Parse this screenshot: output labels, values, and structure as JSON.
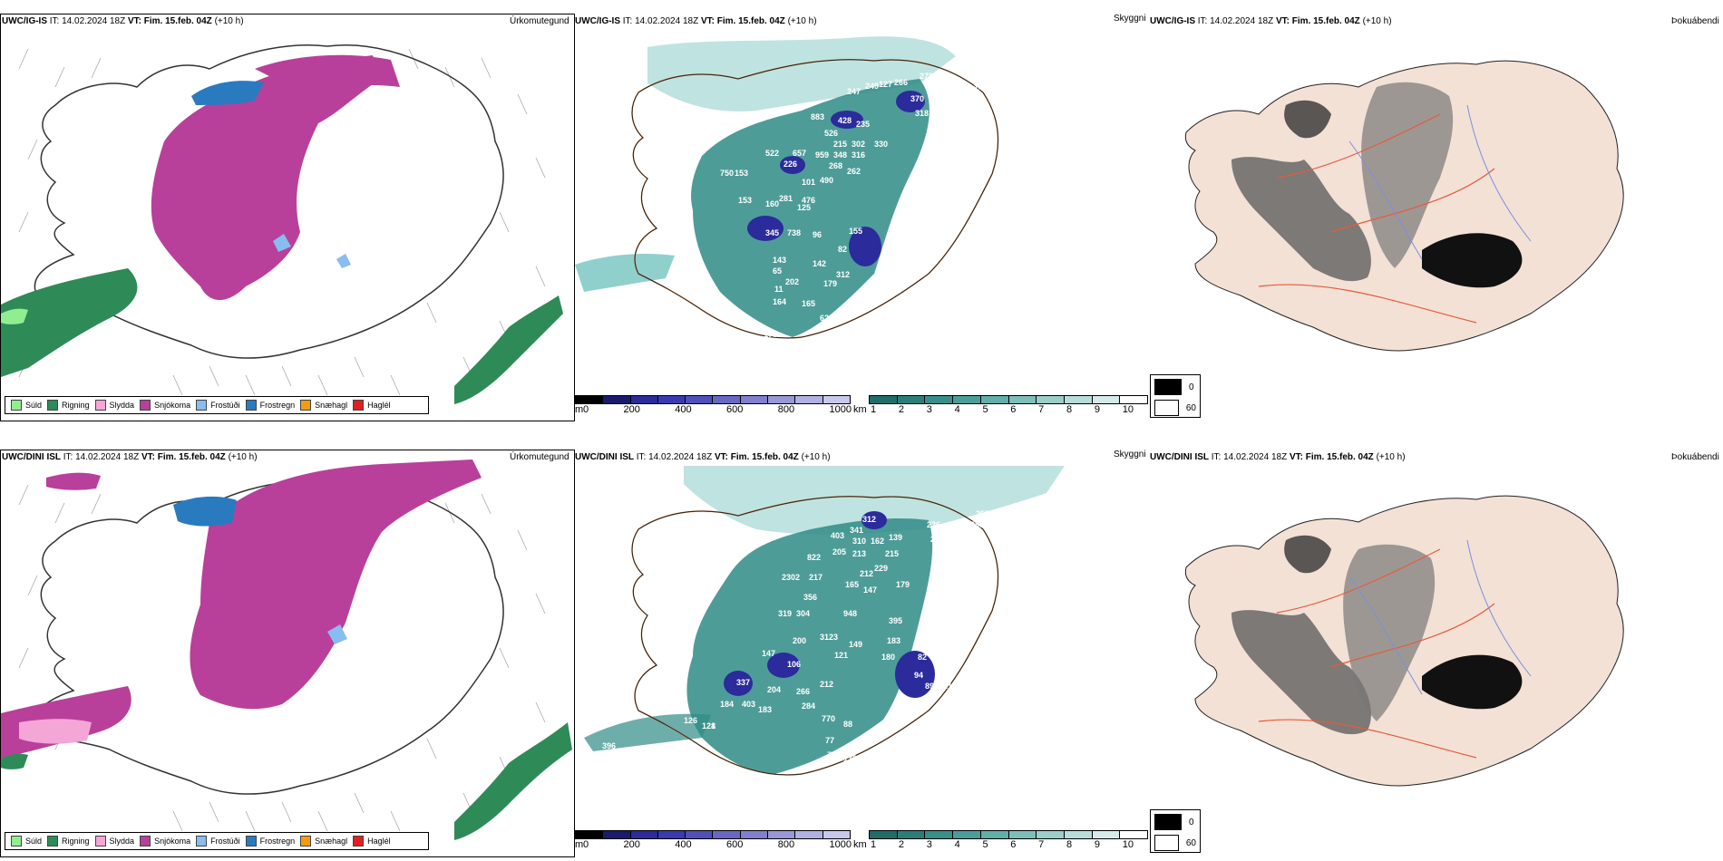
{
  "panels_top": {
    "precip": {
      "model": "UWC/IG-IS",
      "it": "IT: 14.02.2024 18Z",
      "vt_label": "VT:",
      "vt": "Fim. 15.feb. 04Z",
      "lead": "(+10 h)",
      "right_title": "Úrkomutegund"
    },
    "ceiling": {
      "model": "UWC/IG-IS",
      "it": "IT: 14.02.2024 18Z",
      "vt_label": "VT:",
      "vt": "Fim. 15.feb. 04Z",
      "lead": "(+10 h)",
      "right_title": "Skyggni"
    },
    "fog": {
      "model": "UWC/IG-IS",
      "it": "IT: 14.02.2024 18Z",
      "vt_label": "VT:",
      "vt": "Fim. 15.feb. 04Z",
      "lead": "(+10 h)",
      "right_title": "Þokuábendi"
    }
  },
  "panels_bottom": {
    "precip": {
      "model": "UWC/DINI ISL",
      "it": "IT: 14.02.2024 18Z",
      "vt_label": "VT:",
      "vt": "Fim. 15.feb. 04Z",
      "lead": "(+10 h)",
      "right_title": "Úrkomutegund"
    },
    "ceiling": {
      "model": "UWC/DINI ISL",
      "it": "IT: 14.02.2024 18Z",
      "vt_label": "VT:",
      "vt": "Fim. 15.feb. 04Z",
      "lead": "(+10 h)",
      "right_title": "Skyggni"
    },
    "fog": {
      "model": "UWC/DINI ISL",
      "it": "IT: 14.02.2024 18Z",
      "vt_label": "VT:",
      "vt": "Fim. 15.feb. 04Z",
      "lead": "(+10 h)",
      "right_title": "Þokuábendi"
    }
  },
  "precip_legend": [
    {
      "label": "Súld",
      "color": "#90ee90"
    },
    {
      "label": "Rigning",
      "color": "#2e8b57"
    },
    {
      "label": "Slydda",
      "color": "#f4a6d7"
    },
    {
      "label": "Snjókoma",
      "color": "#b8409a"
    },
    {
      "label": "Frostúði",
      "color": "#87bdf0"
    },
    {
      "label": "Frostregn",
      "color": "#2a7ac0"
    },
    {
      "label": "Snæhagl",
      "color": "#f39c12"
    },
    {
      "label": "Haglél",
      "color": "#e02020"
    }
  ],
  "ceiling_bar": {
    "unit": "m",
    "ticks": [
      "0",
      "200",
      "400",
      "600",
      "800",
      "1000"
    ]
  },
  "visibility_bar": {
    "unit": "km",
    "ticks": [
      "1",
      "2",
      "3",
      "4",
      "5",
      "6",
      "7",
      "8",
      "9",
      "10"
    ]
  },
  "fog_legend": [
    {
      "label": "0",
      "color": "#000000"
    },
    {
      "label": "60",
      "color": "#ffffff"
    }
  ],
  "ceiling_labels_top": [
    "85",
    "279",
    "147",
    "247",
    "249",
    "127",
    "266",
    "370",
    "883",
    "428",
    "235",
    "526",
    "318",
    "522",
    "657",
    "215",
    "302",
    "330",
    "959",
    "348",
    "316",
    "226",
    "268",
    "262",
    "101",
    "490",
    "750",
    "153",
    "153",
    "160",
    "281",
    "476",
    "125",
    "345",
    "738",
    "96",
    "155",
    "84",
    "110",
    "143",
    "65",
    "82",
    "142",
    "202",
    "179",
    "312",
    "515",
    "163",
    "11",
    "164",
    "165",
    "623",
    "176"
  ],
  "ceiling_labels_bottom": [
    "312",
    "341",
    "255",
    "236",
    "283",
    "292",
    "247",
    "403",
    "310",
    "162",
    "139",
    "205",
    "213",
    "215",
    "822",
    "229",
    "2302",
    "217",
    "212",
    "165",
    "147",
    "179",
    "356",
    "319",
    "304",
    "948",
    "395",
    "200",
    "3123",
    "149",
    "147",
    "121",
    "183",
    "106",
    "180",
    "82",
    "94",
    "89",
    "216",
    "337",
    "204",
    "266",
    "212",
    "403",
    "184",
    "284",
    "126",
    "1",
    "770",
    "88",
    "77",
    "76",
    "138",
    "396",
    "183",
    "128",
    "125"
  ]
}
